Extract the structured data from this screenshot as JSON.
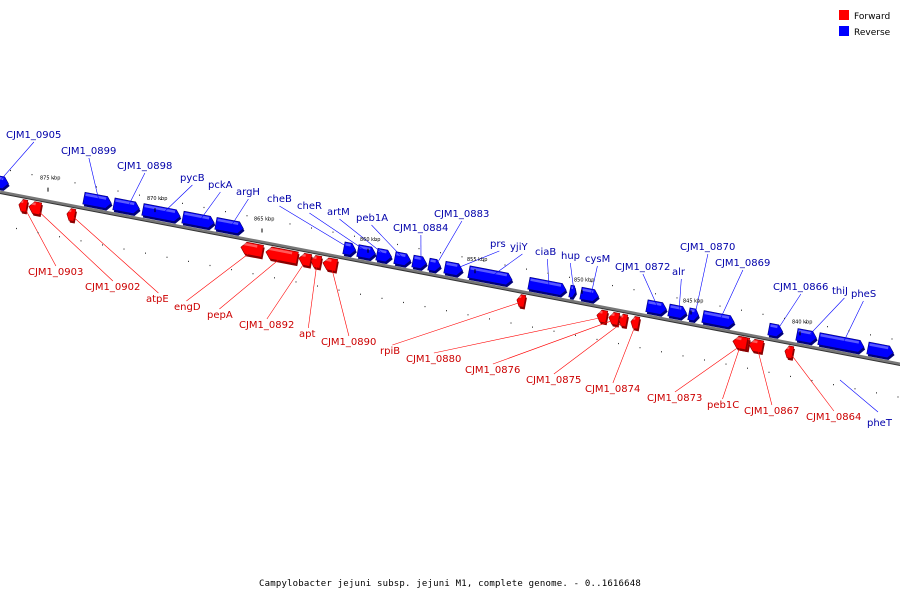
{
  "colors": {
    "forward": "#ff0000",
    "reverse": "#0000ff",
    "forward_label": "#cc0000",
    "reverse_label": "#0000aa",
    "backbone": "#555555"
  },
  "legend": {
    "forward": "Forward",
    "reverse": "Reverse"
  },
  "caption": "Campylobacter jejuni subsp. jejuni M1, complete genome. - 0..1616648",
  "kbp_labels": [
    "875 kbp",
    "870 kbp",
    "865 kbp",
    "860 kbp",
    "855 kbp",
    "850 kbp",
    "845 kbp",
    "840 kbp"
  ],
  "reverse_genes": [
    "CJM1_0905",
    "CJM1_0899",
    "CJM1_0898",
    "pycB",
    "pckA",
    "argH",
    "cheB",
    "cheR",
    "artM",
    "peb1A",
    "CJM1_0884",
    "CJM1_0883",
    "prs",
    "yjiY",
    "ciaB",
    "hup",
    "cysM",
    "CJM1_0872",
    "alr",
    "CJM1_0870",
    "CJM1_0869",
    "CJM1_0866",
    "thiJ",
    "pheS",
    "pheT"
  ],
  "forward_genes": [
    "CJM1_0903",
    "CJM1_0902",
    "atpE",
    "engD",
    "pepA",
    "CJM1_0892",
    "apt",
    "CJM1_0890",
    "rpiB",
    "CJM1_0880",
    "CJM1_0876",
    "CJM1_0875",
    "CJM1_0874",
    "CJM1_0873",
    "peb1C",
    "CJM1_0867",
    "CJM1_0864"
  ]
}
